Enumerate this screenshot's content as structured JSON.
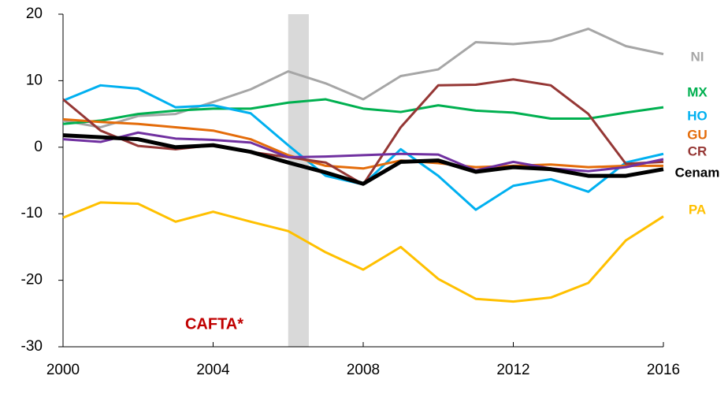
{
  "chart_data": {
    "type": "line",
    "x": [
      2000,
      2001,
      2002,
      2003,
      2004,
      2005,
      2006,
      2007,
      2008,
      2009,
      2010,
      2011,
      2012,
      2013,
      2014,
      2015,
      2016
    ],
    "xlim": [
      2000,
      2016
    ],
    "xticks": [
      2000,
      2004,
      2008,
      2012,
      2016
    ],
    "ylim": [
      -30,
      20
    ],
    "yticks": [
      -30,
      -20,
      -10,
      0,
      10,
      20
    ],
    "grid": false,
    "shaded_range": [
      2006,
      2006.55
    ],
    "annotation": "CAFTA*",
    "series": [
      {
        "name": "PA",
        "color": "#ffc000",
        "values": [
          -10.6,
          -8.3,
          -8.5,
          -11.2,
          -9.7,
          -11.2,
          -12.6,
          -15.8,
          -18.4,
          -15,
          -19.8,
          -22.8,
          -23.2,
          -22.6,
          -20.4,
          -14,
          -10.4
        ]
      },
      {
        "name": "NI",
        "color": "#a6a6a6",
        "values": [
          4,
          3,
          4.7,
          5,
          6.8,
          8.7,
          11.4,
          9.6,
          7.2,
          10.7,
          11.7,
          15.8,
          15.5,
          16,
          17.8,
          15.2,
          14
        ]
      },
      {
        "name": "MX",
        "color": "#00b050",
        "values": [
          3.5,
          4,
          5,
          5.5,
          5.8,
          5.8,
          6.7,
          7.2,
          5.8,
          5.3,
          6.3,
          5.5,
          5.2,
          4.3,
          4.3,
          5.2,
          6
        ]
      },
      {
        "name": "HO",
        "color": "#00b0f0",
        "values": [
          7,
          9.3,
          8.8,
          6,
          6.3,
          5.1,
          0.3,
          -4.3,
          -5.6,
          -0.3,
          -4.3,
          -9.4,
          -5.8,
          -4.8,
          -6.7,
          -2.3,
          -1
        ]
      },
      {
        "name": "GU",
        "color": "#e46c0a",
        "values": [
          4.2,
          3.8,
          3.5,
          3,
          2.5,
          1.2,
          -1.2,
          -2.8,
          -3.2,
          -2,
          -2.4,
          -3,
          -2.8,
          -2.6,
          -3,
          -2.8,
          -2.8
        ]
      },
      {
        "name": "CR",
        "color": "#953735",
        "values": [
          7.2,
          2.5,
          0.2,
          -0.3,
          0.3,
          -0.7,
          -1.5,
          -2.3,
          -5.6,
          3,
          9.3,
          9.4,
          10.2,
          9.3,
          5,
          -2.5,
          -2.2
        ]
      },
      {
        "color": "#7030a0",
        "values": [
          1.2,
          0.8,
          2.2,
          1.3,
          1.1,
          0.7,
          -1.5,
          -1.4,
          -1.2,
          -1,
          -1.1,
          -3.5,
          -2.2,
          -3.2,
          -3.6,
          -3,
          -1.8
        ]
      },
      {
        "name": "Cenam",
        "color": "#000000",
        "values": [
          1.8,
          1.5,
          1.2,
          0,
          0.3,
          -0.7,
          -2.3,
          -3.8,
          -5.5,
          -2.2,
          -2,
          -3.7,
          -3,
          -3.3,
          -4.3,
          -4.3,
          -3.3
        ]
      }
    ]
  }
}
